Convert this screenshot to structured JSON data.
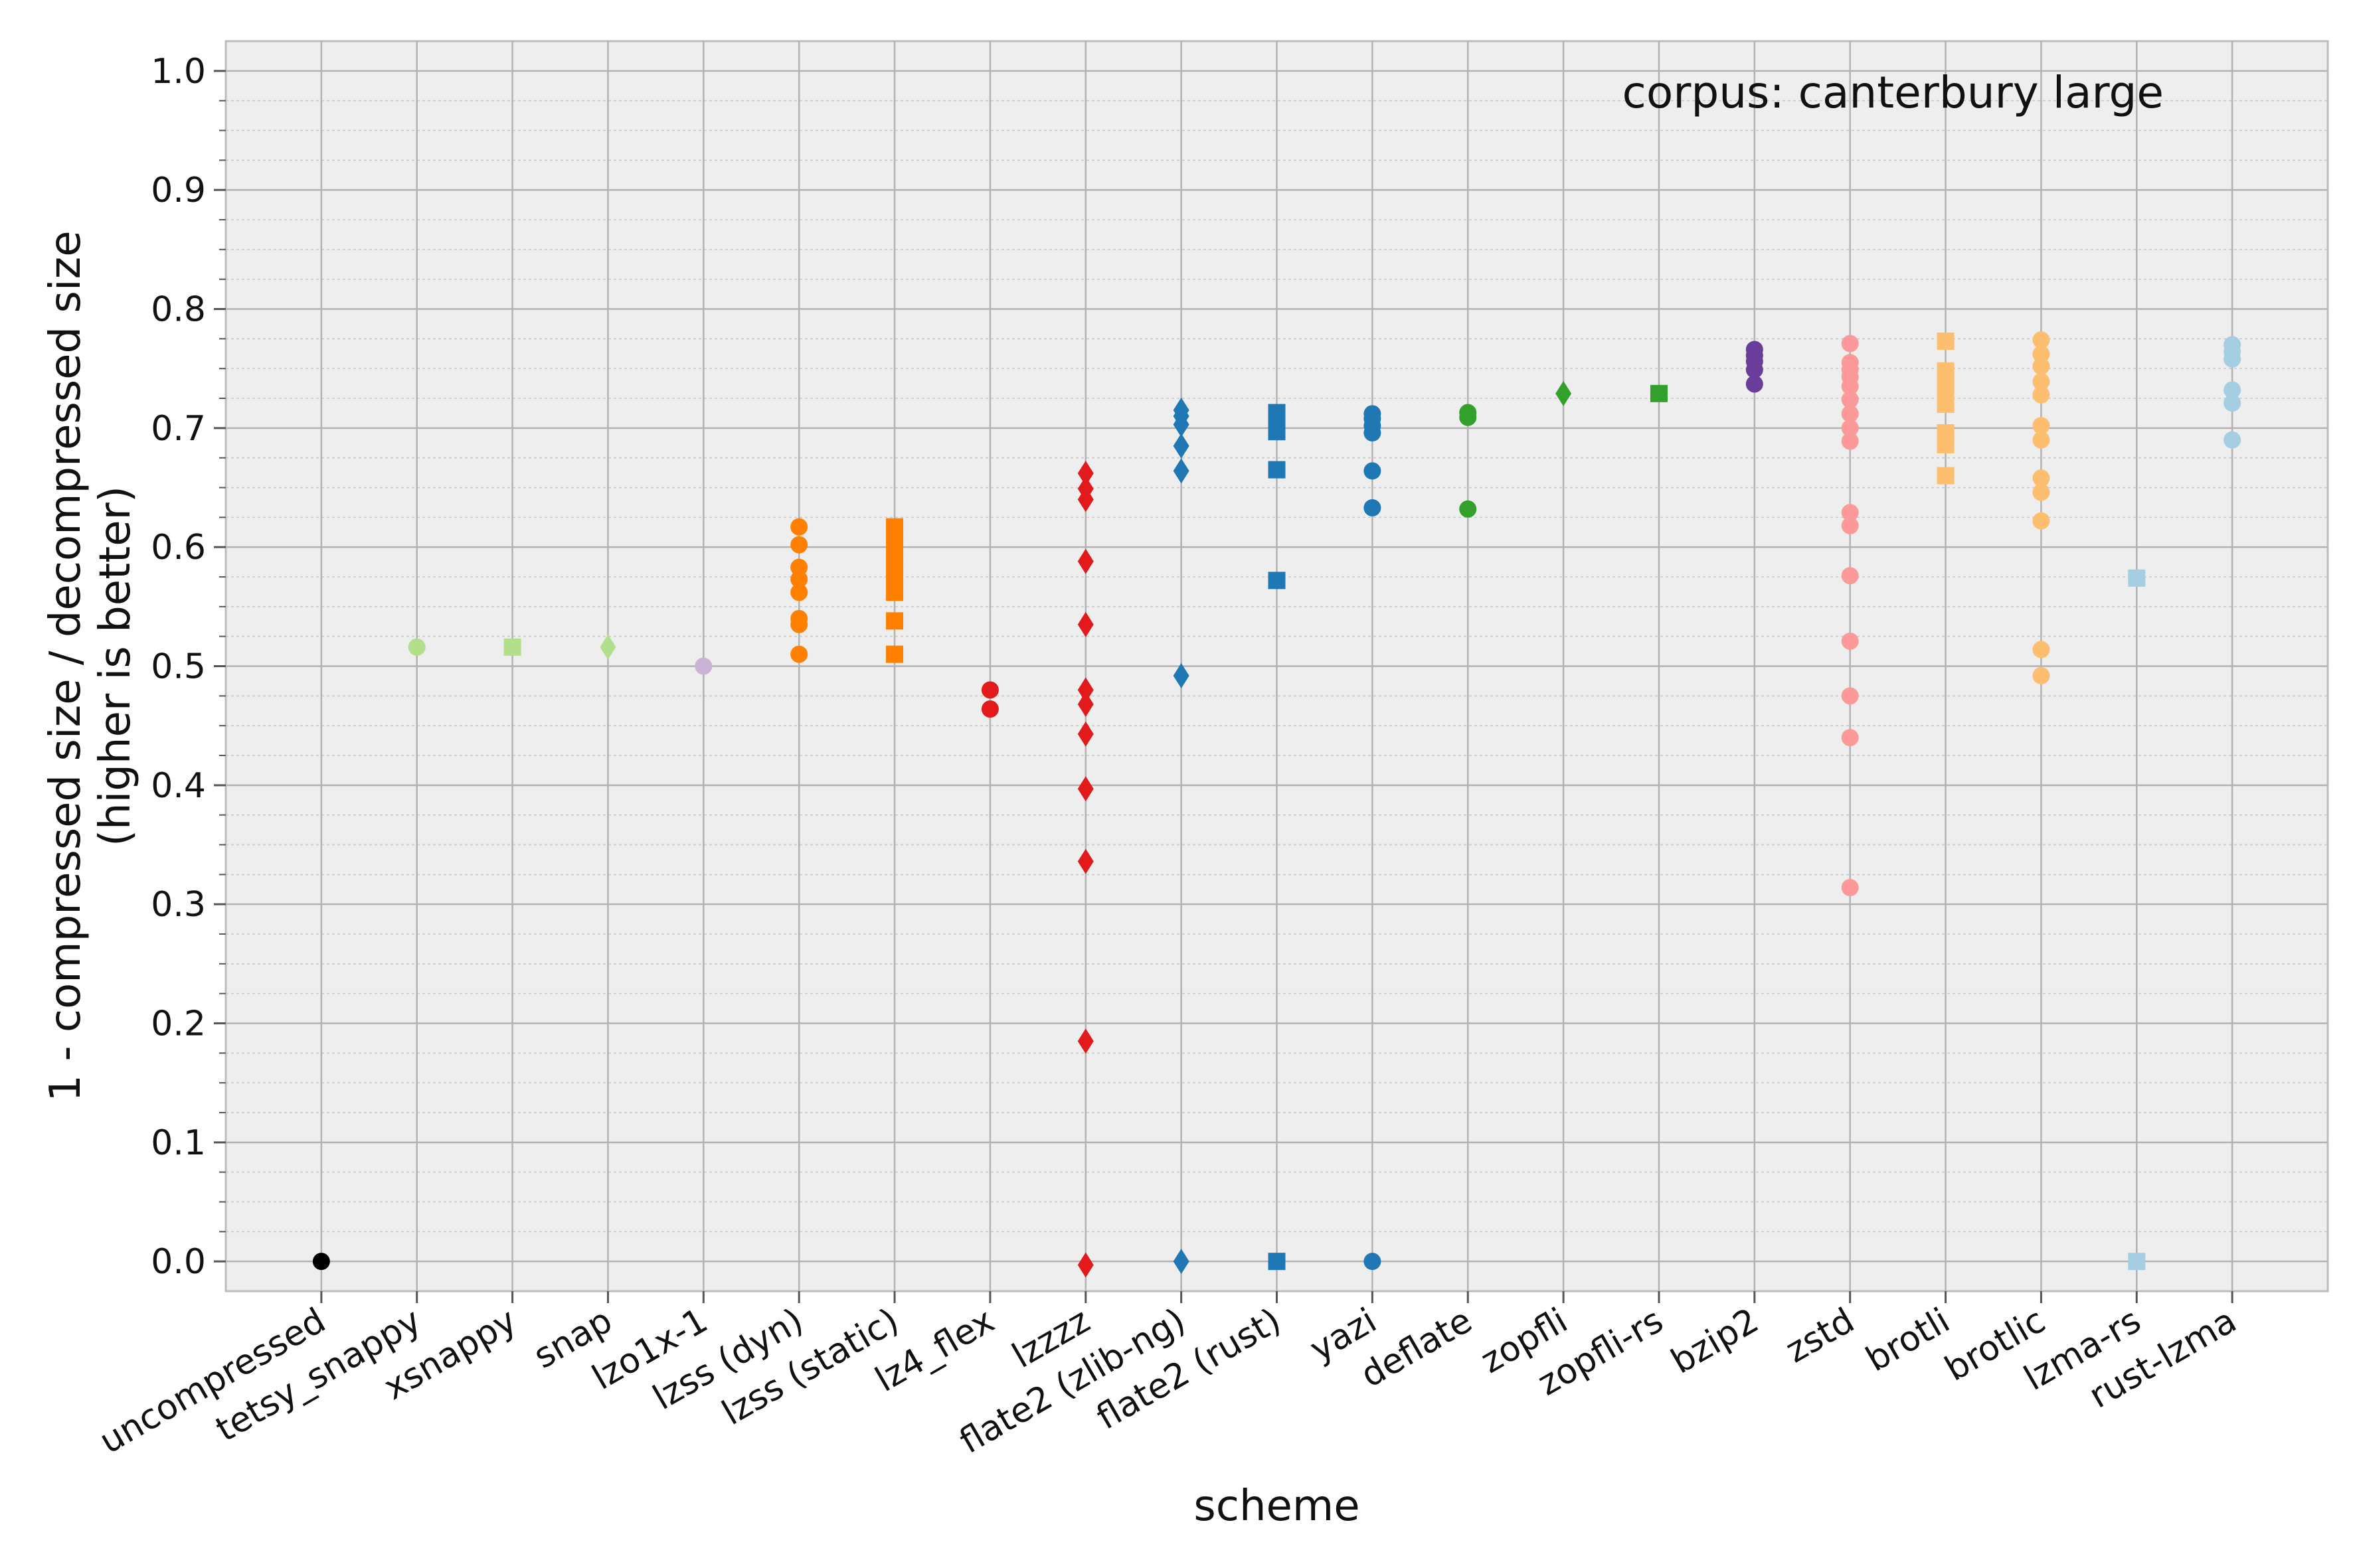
{
  "chart_data": {
    "type": "scatter",
    "title": "",
    "annotation": "corpus: canterbury large",
    "xlabel": "scheme",
    "ylabel_line1": "1 - compressed size / decompressed size",
    "ylabel_line2": "(higher is better)",
    "ylim": [
      -0.025,
      1.025
    ],
    "yticks": [
      0.0,
      0.1,
      0.2,
      0.3,
      0.4,
      0.5,
      0.6,
      0.7,
      0.8,
      0.9,
      1.0
    ],
    "ytick_labels": [
      "0.0",
      "0.1",
      "0.2",
      "0.3",
      "0.4",
      "0.5",
      "0.6",
      "0.7",
      "0.8",
      "0.9",
      "1.0"
    ],
    "grid": true,
    "categories": [
      "uncompressed",
      "tetsy_snappy",
      "xsnappy",
      "snap",
      "lzo1x-1",
      "lzss (dyn)",
      "lzss (static)",
      "lz4_flex",
      "lzzzz",
      "flate2 (zlib-ng)",
      "flate2 (rust)",
      "yazi",
      "deflate",
      "zopfli",
      "zopfli-rs",
      "bzip2",
      "zstd",
      "brotli",
      "brotlic",
      "lzma-rs",
      "rust-lzma"
    ],
    "series": [
      {
        "category": "uncompressed",
        "color": "#000000",
        "marker": "circle",
        "values": [
          0.0
        ]
      },
      {
        "category": "tetsy_snappy",
        "color": "#b2df8a",
        "marker": "circle",
        "values": [
          0.516
        ]
      },
      {
        "category": "xsnappy",
        "color": "#b2df8a",
        "marker": "square",
        "values": [
          0.516
        ]
      },
      {
        "category": "snap",
        "color": "#b2df8a",
        "marker": "diamond",
        "values": [
          0.516
        ]
      },
      {
        "category": "lzo1x-1",
        "color": "#cab2d6",
        "marker": "circle",
        "values": [
          0.5
        ]
      },
      {
        "category": "lzss (dyn)",
        "color": "#ff7f00",
        "marker": "circle",
        "values": [
          0.51,
          0.535,
          0.54,
          0.562,
          0.573,
          0.583,
          0.602,
          0.617
        ]
      },
      {
        "category": "lzss (static)",
        "color": "#ff7f00",
        "marker": "square",
        "values": [
          0.51,
          0.538,
          0.562,
          0.573,
          0.583,
          0.595,
          0.607,
          0.617
        ]
      },
      {
        "category": "lz4_flex",
        "color": "#e31a1c",
        "marker": "circle",
        "values": [
          0.464,
          0.48
        ]
      },
      {
        "category": "lzzzz",
        "color": "#e31a1c",
        "marker": "diamond",
        "values": [
          -0.003,
          0.185,
          0.336,
          0.397,
          0.443,
          0.468,
          0.48,
          0.535,
          0.588,
          0.64,
          0.649,
          0.662
        ]
      },
      {
        "category": "flate2 (zlib-ng)",
        "color": "#1f78b4",
        "marker": "diamond",
        "values": [
          0.0,
          0.492,
          0.664,
          0.685,
          0.703,
          0.71,
          0.715
        ]
      },
      {
        "category": "flate2 (rust)",
        "color": "#1f78b4",
        "marker": "square",
        "values": [
          0.0,
          0.572,
          0.665,
          0.697,
          0.702,
          0.707,
          0.713
        ]
      },
      {
        "category": "yazi",
        "color": "#1f78b4",
        "marker": "circle",
        "values": [
          0.0,
          0.633,
          0.664,
          0.696,
          0.702,
          0.708,
          0.712
        ]
      },
      {
        "category": "deflate",
        "color": "#33a02c",
        "marker": "circle",
        "values": [
          0.632,
          0.709,
          0.713
        ]
      },
      {
        "category": "zopfli",
        "color": "#33a02c",
        "marker": "diamond",
        "values": [
          0.729
        ]
      },
      {
        "category": "zopfli-rs",
        "color": "#33a02c",
        "marker": "square",
        "values": [
          0.729
        ]
      },
      {
        "category": "bzip2",
        "color": "#6a3d9a",
        "marker": "circle",
        "values": [
          0.737,
          0.749,
          0.756,
          0.761,
          0.766
        ]
      },
      {
        "category": "zstd",
        "color": "#fb9a99",
        "marker": "circle",
        "values": [
          0.314,
          0.44,
          0.475,
          0.521,
          0.576,
          0.618,
          0.629,
          0.689,
          0.7,
          0.712,
          0.724,
          0.735,
          0.743,
          0.749,
          0.755,
          0.771
        ]
      },
      {
        "category": "brotli",
        "color": "#fdbf6f",
        "marker": "square",
        "values": [
          0.66,
          0.686,
          0.696,
          0.72,
          0.73,
          0.738,
          0.748,
          0.773
        ]
      },
      {
        "category": "brotlic",
        "color": "#fdbf6f",
        "marker": "circle",
        "values": [
          0.492,
          0.514,
          0.622,
          0.646,
          0.658,
          0.69,
          0.702,
          0.728,
          0.739,
          0.752,
          0.762,
          0.774
        ]
      },
      {
        "category": "lzma-rs",
        "color": "#a6cee3",
        "marker": "square",
        "values": [
          0.0,
          0.574
        ]
      },
      {
        "category": "rust-lzma",
        "color": "#a6cee3",
        "marker": "circle",
        "values": [
          0.69,
          0.721,
          0.732,
          0.758,
          0.764,
          0.77
        ]
      }
    ]
  }
}
